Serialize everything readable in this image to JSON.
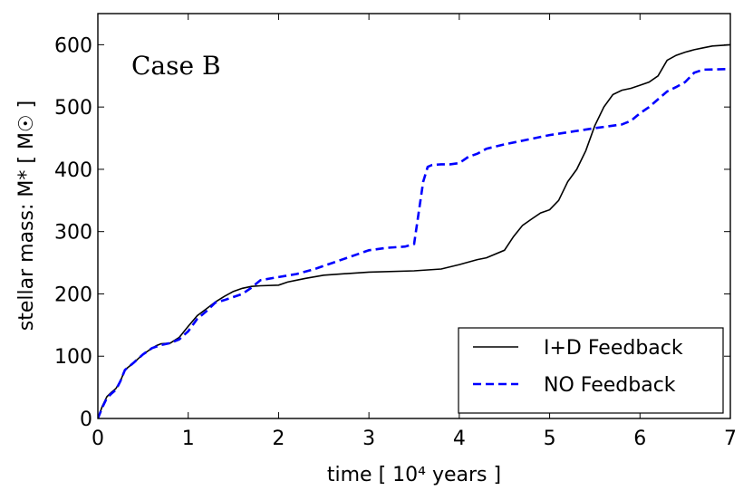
{
  "chart_data": {
    "type": "line",
    "title": "",
    "annotation": "Case B",
    "xlabel": "time [ 10⁴  years ]",
    "ylabel": "stellar mass: M* [ M☉ ]",
    "xlim": [
      0,
      7
    ],
    "ylim": [
      0,
      650
    ],
    "xticks": [
      0,
      1,
      2,
      3,
      4,
      5,
      6,
      7
    ],
    "yticks": [
      0,
      100,
      200,
      300,
      400,
      500,
      600
    ],
    "xtick_labels": [
      "0",
      "1",
      "2",
      "3",
      "4",
      "5",
      "6",
      "7"
    ],
    "ytick_labels": [
      "0",
      "100",
      "200",
      "300",
      "400",
      "500",
      "600"
    ],
    "legend_position": "lower-right",
    "series": [
      {
        "name": "I+D Feedback",
        "style": "solid",
        "color": "#000000",
        "x": [
          0,
          0.05,
          0.1,
          0.15,
          0.2,
          0.25,
          0.3,
          0.4,
          0.5,
          0.6,
          0.65,
          0.7,
          0.8,
          0.9,
          1.0,
          1.1,
          1.2,
          1.3,
          1.4,
          1.5,
          1.6,
          1.7,
          1.8,
          2.0,
          2.1,
          2.2,
          2.3,
          2.5,
          3.0,
          3.5,
          3.8,
          4.0,
          4.2,
          4.3,
          4.5,
          4.6,
          4.7,
          4.8,
          4.9,
          5.0,
          5.1,
          5.2,
          5.3,
          5.4,
          5.5,
          5.6,
          5.7,
          5.8,
          5.9,
          6.0,
          6.1,
          6.2,
          6.3,
          6.4,
          6.5,
          6.6,
          6.7,
          6.8,
          7.0
        ],
        "y": [
          0,
          20,
          35,
          42,
          48,
          60,
          78,
          90,
          103,
          113,
          117,
          120,
          121,
          130,
          148,
          165,
          176,
          187,
          196,
          204,
          209,
          212,
          213,
          214,
          219,
          222,
          225,
          230,
          235,
          237,
          240,
          247,
          255,
          258,
          270,
          292,
          310,
          320,
          330,
          335,
          350,
          380,
          400,
          430,
          470,
          500,
          520,
          527,
          530,
          535,
          540,
          550,
          575,
          583,
          588,
          592,
          595,
          598,
          600
        ]
      },
      {
        "name": "NO Feedback",
        "style": "dashed",
        "color": "#0000ff",
        "x": [
          0,
          0.05,
          0.1,
          0.15,
          0.2,
          0.25,
          0.3,
          0.4,
          0.5,
          0.6,
          0.7,
          0.8,
          0.9,
          1.0,
          1.1,
          1.2,
          1.3,
          1.4,
          1.5,
          1.6,
          1.7,
          1.8,
          2.0,
          2.2,
          2.4,
          2.6,
          2.8,
          3.0,
          3.2,
          3.4,
          3.5,
          3.55,
          3.6,
          3.65,
          3.7,
          3.8,
          3.9,
          4.0,
          4.1,
          4.2,
          4.3,
          4.5,
          5.0,
          5.5,
          5.8,
          5.9,
          6.0,
          6.1,
          6.3,
          6.4,
          6.5,
          6.6,
          6.7,
          7.0
        ],
        "y": [
          0,
          18,
          33,
          40,
          46,
          60,
          78,
          90,
          103,
          113,
          118,
          121,
          127,
          140,
          160,
          172,
          186,
          190,
          195,
          200,
          210,
          222,
          227,
          232,
          240,
          250,
          260,
          270,
          274,
          276,
          280,
          330,
          380,
          404,
          407,
          408,
          408,
          410,
          420,
          425,
          433,
          440,
          455,
          466,
          472,
          478,
          490,
          500,
          525,
          532,
          540,
          555,
          560,
          561
        ]
      }
    ]
  }
}
